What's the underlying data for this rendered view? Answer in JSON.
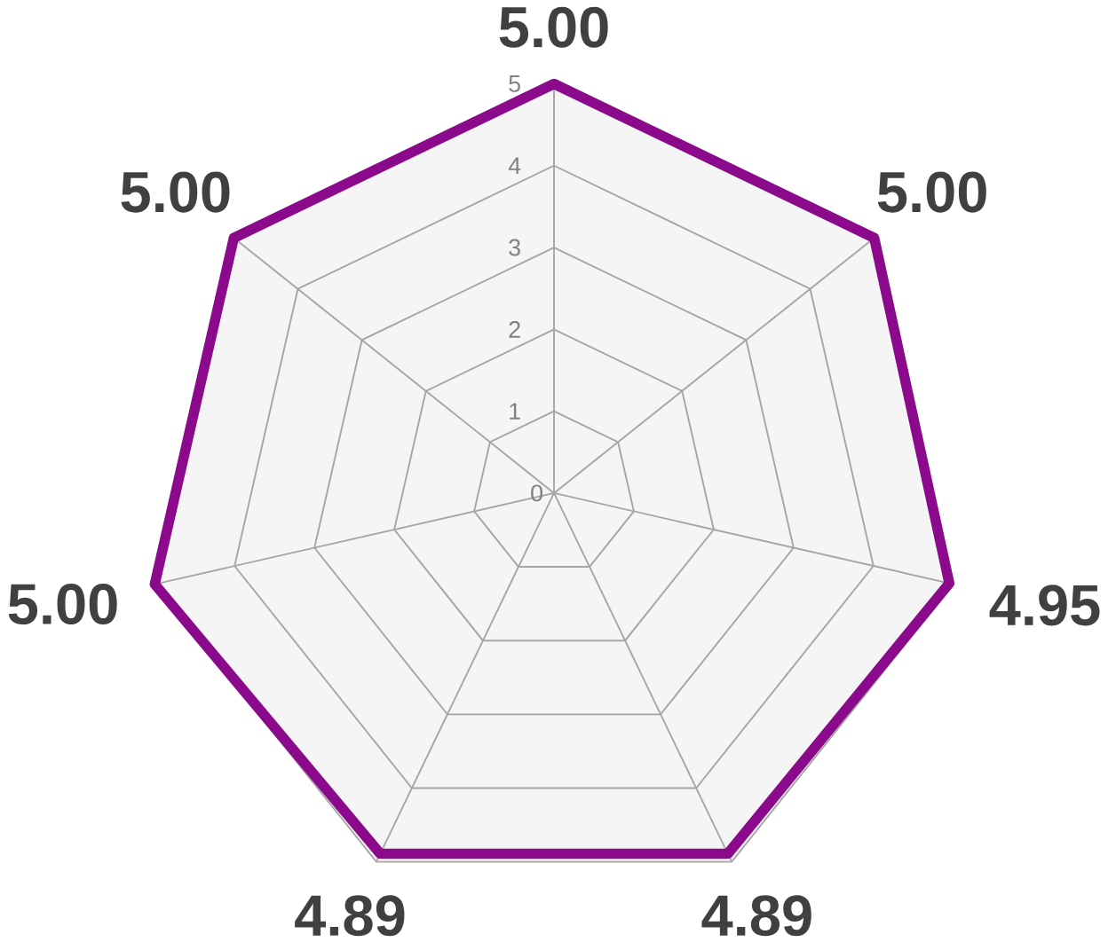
{
  "chart_data": {
    "type": "radar",
    "categories": [
      "5.00",
      "5.00",
      "4.95",
      "4.89",
      "4.89",
      "5.00",
      "5.00"
    ],
    "series": [
      {
        "color": "#8b0a8b",
        "values": [
          5,
          5,
          4.95,
          4.89,
          4.89,
          5,
          5
        ]
      }
    ],
    "ylim": [
      0,
      5
    ],
    "yticks": [
      {
        "value": 0,
        "label": "0"
      },
      {
        "value": 1,
        "label": "1"
      },
      {
        "value": 2,
        "label": "2"
      },
      {
        "value": 3,
        "label": "3"
      },
      {
        "value": 4,
        "label": "4"
      },
      {
        "value": 5,
        "label": "5"
      }
    ],
    "grid": true
  }
}
